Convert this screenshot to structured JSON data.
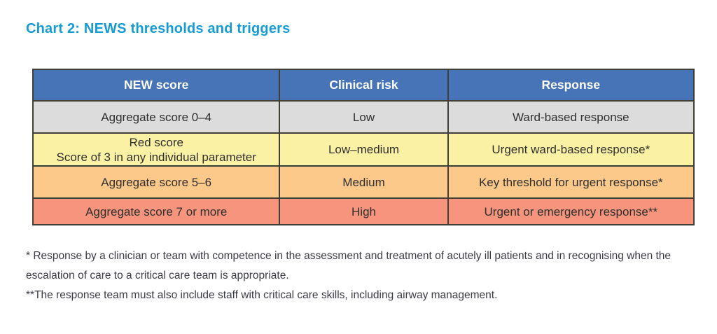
{
  "title": {
    "text": "Chart 2: NEWS thresholds and triggers",
    "color": "#169bd7"
  },
  "table": {
    "border_color": "#3f3f38",
    "header": {
      "bg": "#4674b7",
      "text_color": "#ffffff",
      "columns": [
        "NEW score",
        "Clinical risk",
        "Response"
      ]
    },
    "rows": [
      {
        "bg": "#dcdcdc",
        "score_lines": [
          "Aggregate score 0–4",
          ""
        ],
        "risk": "Low",
        "response": "Ward-based response"
      },
      {
        "bg": "#fbf1a4",
        "score_lines": [
          "Red score",
          "Score of 3 in any individual parameter"
        ],
        "risk": "Low–medium",
        "response": "Urgent ward-based response*"
      },
      {
        "bg": "#fcc98a",
        "score_lines": [
          "Aggregate score 5–6",
          ""
        ],
        "risk": "Medium",
        "response": "Key threshold for urgent response*"
      },
      {
        "bg": "#f6947e",
        "score_lines": [
          "Aggregate score 7 or more",
          ""
        ],
        "risk": "High",
        "response": "Urgent or emergency response**"
      }
    ]
  },
  "footnotes": [
    "* Response by a clinician or team with competence in the assessment and treatment of acutely ill patients and in recognising when the escalation of care to a critical care team is appropriate.",
    "**The response team must also include staff with critical care skills, including airway management."
  ]
}
